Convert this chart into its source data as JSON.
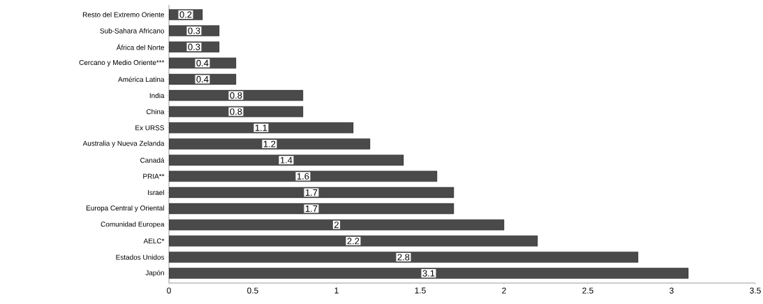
{
  "chart_data": {
    "type": "bar",
    "orientation": "horizontal",
    "categories": [
      "Resto del Extremo Oriente",
      "Sub-Sahara Africano",
      "África del Norte",
      "Cercano y Medio Oriente***",
      "América Latina",
      "India",
      "China",
      "Ex URSS",
      "Australia y Nueva Zelanda",
      "Canadá",
      "PRIA**",
      "Israel",
      "Europa Central y Oriental",
      "Comunidad Europea",
      "AELC*",
      "Estados Unidos",
      "Japón"
    ],
    "values": [
      0.2,
      0.3,
      0.3,
      0.4,
      0.4,
      0.8,
      0.8,
      1.1,
      1.2,
      1.4,
      1.6,
      1.7,
      1.7,
      2,
      2.2,
      2.8,
      3.1
    ],
    "color": "#4a4a4a",
    "xlim": [
      0,
      3.5
    ],
    "xticks": [
      0,
      0.5,
      1,
      1.5,
      2,
      2.5,
      3,
      3.5
    ],
    "data_labels": true,
    "grid": false
  }
}
